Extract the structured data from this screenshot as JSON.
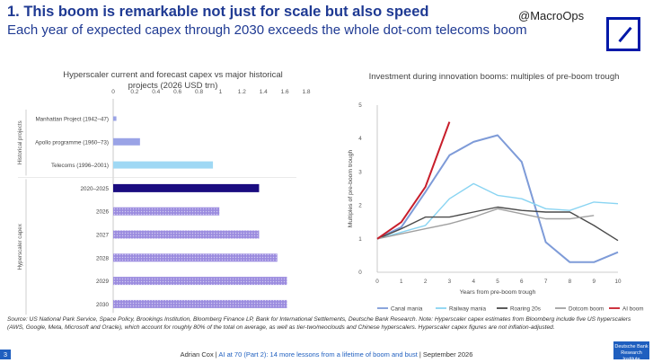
{
  "header": {
    "headline": "1. This boom is remarkable not just for scale but also speed",
    "subhead": "Each year of expected capex through 2030 exceeds the whole dot-com telecoms boom",
    "handle": "@MacroOps"
  },
  "footer": {
    "source_note": "Source: US National Park Service, Space Policy, Brookings Institution, Bloomberg Finance LP, Bank for International Settlements, Deutsche Bank Research. Note: Hyperscaler capex estimates from Bloomberg include five US hyperscalers (AWS, Google, Meta, Microsoft and Oracle), which account for roughly 80% of the total on average, as well as tier-two/neoclouds and Chinese hyperscalers. Hyperscaler capex figures are not inflation-adjusted.",
    "page_number": "3",
    "author": "Adrian Cox",
    "title_link": "AI at 70 (Part 2): 14 more lessons from a lifetime of boom and bust",
    "date": "September 2026",
    "badge_line1": "Deutsche Bank",
    "badge_line2": "Research Institute"
  },
  "colors": {
    "headline": "#1f3a93",
    "historical_bar": "#9aa3e6",
    "telecoms_bar": "#9fd8f4",
    "actual_bar": "#1a0c80",
    "forecast_bar": "#9b8cdf",
    "canal": "#7e9bd8",
    "railway": "#89d4f2",
    "roaring": "#4a4a4a",
    "dotcom": "#a0a0a0",
    "ai": "#c81e2b"
  },
  "chart_data": [
    {
      "type": "bar",
      "orientation": "horizontal",
      "title": "Hyperscaler current and forecast capex vs major historical projects (2026 USD trn)",
      "categories": [
        "Manhattan Project (1942–47)",
        "Apollo programme (1960–73)",
        "Telecoms (1996–2001)",
        "2020–2025",
        "2026",
        "2027",
        "2028",
        "2029",
        "2030"
      ],
      "values": [
        0.03,
        0.25,
        0.93,
        1.36,
        0.99,
        1.36,
        1.53,
        1.62,
        1.62
      ],
      "groups": [
        {
          "label": "Historical projects",
          "categories": [
            "Manhattan Project (1942–47)",
            "Apollo programme (1960–73)",
            "Telecoms (1996–2001)"
          ]
        },
        {
          "label": "Hyperscaler capex",
          "categories": [
            "2020–2025",
            "2026",
            "2027",
            "2028",
            "2029",
            "2030"
          ]
        }
      ],
      "xlim": [
        0,
        1.8
      ],
      "x_ticks": [
        "0",
        "0.2",
        "0.4",
        "0.6",
        "0.8",
        "1",
        "1.2",
        "1.4",
        "1.6",
        "1.8"
      ],
      "xlabel": "",
      "ylabel": "",
      "grid": false
    },
    {
      "type": "line",
      "title": "Investment during innovation booms: multiples of pre-boom trough",
      "xlabel": "Years from pre-boom trough",
      "ylabel": "Multiples of pre-boom trough",
      "x": [
        0,
        1,
        2,
        3,
        4,
        5,
        6,
        7,
        8,
        9,
        10
      ],
      "xlim": [
        0,
        10
      ],
      "ylim": [
        0,
        5
      ],
      "y_ticks": [
        "0",
        "1",
        "2",
        "3",
        "4",
        "5"
      ],
      "x_ticks": [
        "0",
        "1",
        "2",
        "3",
        "4",
        "5",
        "6",
        "7",
        "8",
        "9",
        "10"
      ],
      "grid": false,
      "legend_position": "bottom",
      "series": [
        {
          "name": "Canal mania",
          "values": [
            1.0,
            1.35,
            2.4,
            3.5,
            3.9,
            4.1,
            3.3,
            0.9,
            0.3,
            0.3,
            0.6
          ]
        },
        {
          "name": "Railway mania",
          "values": [
            1.0,
            1.2,
            1.4,
            2.2,
            2.65,
            2.3,
            2.2,
            1.9,
            1.85,
            2.1,
            2.05
          ]
        },
        {
          "name": "Roaring 20s",
          "values": [
            1.0,
            1.3,
            1.65,
            1.65,
            1.8,
            1.95,
            1.85,
            1.8,
            1.8,
            1.4,
            0.95
          ]
        },
        {
          "name": "Dotcom boom",
          "values": [
            1.0,
            1.15,
            1.3,
            1.45,
            1.65,
            1.9,
            1.75,
            1.6,
            1.6,
            1.7,
            null
          ]
        },
        {
          "name": "AI boom",
          "values": [
            1.0,
            1.5,
            2.55,
            4.5,
            null,
            null,
            null,
            null,
            null,
            null,
            null
          ]
        }
      ]
    }
  ]
}
